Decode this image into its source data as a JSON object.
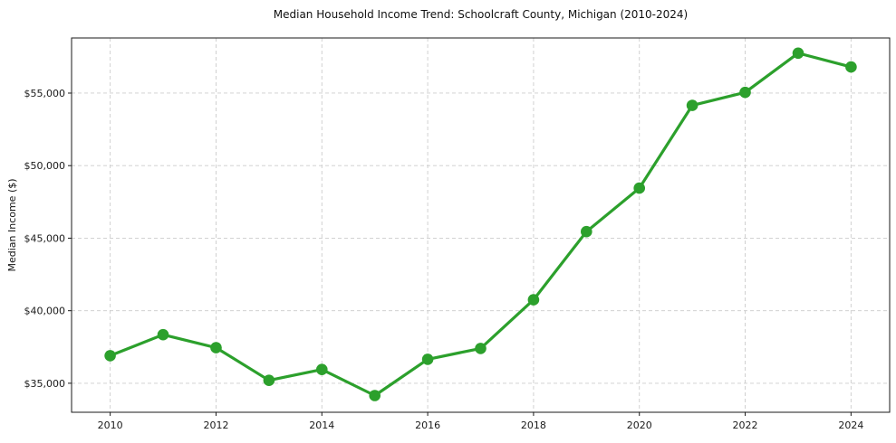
{
  "title": "Median Household Income Trend: Schoolcraft County, Michigan (2010-2024)",
  "colors": {
    "line": "#2ca02c",
    "marker": "#2ca02c",
    "grid": "#cccccc",
    "spine": "#1a1a1a",
    "tick_label": "#1a1a1a",
    "background": "#ffffff"
  },
  "chart_data": {
    "type": "line",
    "title": "Median Household Income Trend: Schoolcraft County, Michigan (2010-2024)",
    "xlabel": "",
    "ylabel": "Median Income ($)",
    "x": [
      2010,
      2011,
      2012,
      2013,
      2014,
      2015,
      2016,
      2017,
      2018,
      2019,
      2020,
      2021,
      2022,
      2023,
      2024
    ],
    "series": [
      {
        "name": "Median Household Income",
        "values": [
          36900,
          38350,
          37450,
          35200,
          35950,
          34150,
          36650,
          37400,
          40750,
          45450,
          48450,
          54150,
          55050,
          57750,
          56800
        ]
      }
    ],
    "xlim": [
      2009.27,
      2024.73
    ],
    "ylim": [
      33000,
      58800
    ],
    "xticks": [
      2010,
      2012,
      2014,
      2016,
      2018,
      2020,
      2022,
      2024
    ],
    "xtick_labels": [
      "2010",
      "2012",
      "2014",
      "2016",
      "2018",
      "2020",
      "2022",
      "2024"
    ],
    "yticks": [
      35000,
      40000,
      45000,
      50000,
      55000
    ],
    "ytick_labels": [
      "$35,000",
      "$40,000",
      "$45,000",
      "$50,000",
      "$55,000"
    ],
    "grid": true,
    "grid_style": "dashed",
    "legend": "none",
    "marker": "circle"
  }
}
